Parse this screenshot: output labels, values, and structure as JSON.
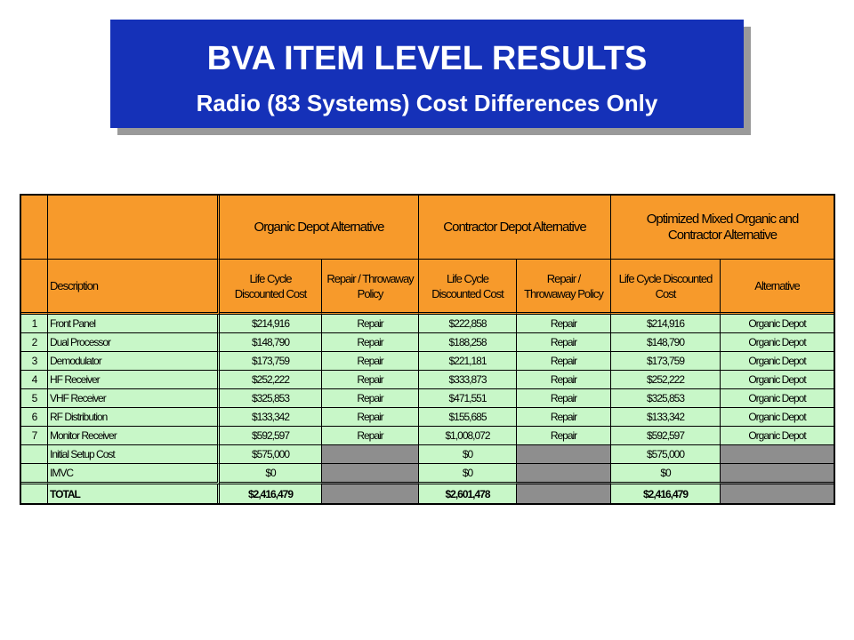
{
  "title": {
    "line1": "BVA ITEM LEVEL RESULTS",
    "line2": "Radio (83 Systems) Cost Differences Only"
  },
  "colors": {
    "banner": "#1531b8",
    "header": "#f79a2b",
    "row": "#c8f7c8",
    "blank": "#8e8e8e"
  },
  "table": {
    "groups": [
      "Organic Depot Alternative",
      "Contractor Depot Alternative",
      "Optimized Mixed Organic and Contractor Alternative"
    ],
    "group3_line1": "Optimized Mixed Organic and",
    "group3_line2": "Contractor Alternative",
    "headers": {
      "description": "Description",
      "od_lcc_1": "Life Cycle",
      "od_lcc_2": "Discounted Cost",
      "od_rt_1": "Repair / Throwaway",
      "od_rt_2": "Policy",
      "cd_lcc_1": "Life Cycle",
      "cd_lcc_2": "Discounted Cost",
      "cd_rt_1": "Repair /",
      "cd_rt_2": "Throwaway Policy",
      "om_lcc_1": "Life Cycle Discounted",
      "om_lcc_2": "Cost",
      "om_alt": "Alternative"
    },
    "rows": [
      {
        "idx": "1",
        "desc": "Front Panel",
        "od_lcc": "$214,916",
        "od_rt": "Repair",
        "cd_lcc": "$222,858",
        "cd_rt": "Repair",
        "om_lcc": "$214,916",
        "om_alt": "Organic Depot"
      },
      {
        "idx": "2",
        "desc": "Dual Processor",
        "od_lcc": "$148,790",
        "od_rt": "Repair",
        "cd_lcc": "$188,258",
        "cd_rt": "Repair",
        "om_lcc": "$148,790",
        "om_alt": "Organic Depot"
      },
      {
        "idx": "3",
        "desc": "Demodulator",
        "od_lcc": "$173,759",
        "od_rt": "Repair",
        "cd_lcc": "$221,181",
        "cd_rt": "Repair",
        "om_lcc": "$173,759",
        "om_alt": "Organic Depot"
      },
      {
        "idx": "4",
        "desc": "HF Receiver",
        "od_lcc": "$252,222",
        "od_rt": "Repair",
        "cd_lcc": "$333,873",
        "cd_rt": "Repair",
        "om_lcc": "$252,222",
        "om_alt": "Organic Depot"
      },
      {
        "idx": "5",
        "desc": "VHF Receiver",
        "od_lcc": "$325,853",
        "od_rt": "Repair",
        "cd_lcc": "$471,551",
        "cd_rt": "Repair",
        "om_lcc": "$325,853",
        "om_alt": "Organic Depot"
      },
      {
        "idx": "6",
        "desc": "RF Distribution",
        "od_lcc": "$133,342",
        "od_rt": "Repair",
        "cd_lcc": "$155,685",
        "cd_rt": "Repair",
        "om_lcc": "$133,342",
        "om_alt": "Organic Depot"
      },
      {
        "idx": "7",
        "desc": "Monitor Receiver",
        "od_lcc": "$592,597",
        "od_rt": "Repair",
        "cd_lcc": "$1,008,072",
        "cd_rt": "Repair",
        "om_lcc": "$592,597",
        "om_alt": "Organic Depot"
      }
    ],
    "setup": {
      "desc": "Initial Setup Cost",
      "od_lcc": "$575,000",
      "cd_lcc": "$0",
      "om_lcc": "$575,000"
    },
    "imvc": {
      "desc": "IMVC",
      "od_lcc": "$0",
      "cd_lcc": "$0",
      "om_lcc": "$0"
    },
    "total": {
      "desc": "TOTAL",
      "od_lcc": "$2,416,479",
      "cd_lcc": "$2,601,478",
      "om_lcc": "$2,416,479"
    }
  }
}
